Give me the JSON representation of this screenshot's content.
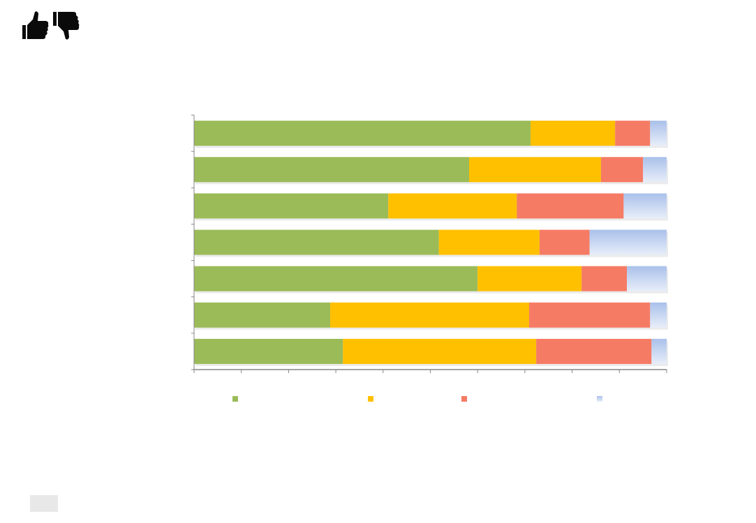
{
  "header": {
    "icons": [
      "thumbs-up-icon",
      "thumbs-down-icon"
    ]
  },
  "chart_data": {
    "type": "bar",
    "orientation": "horizontal",
    "stacked": true,
    "title": "",
    "xlabel": "",
    "ylabel": "",
    "xlim": [
      0,
      100
    ],
    "x_ticks": 10,
    "grid": false,
    "legend": "bottom",
    "categories": [
      "",
      "",
      "",
      "",
      "",
      "",
      ""
    ],
    "series": [
      {
        "color": "#9BBB59",
        "values": [
          71.2,
          58.2,
          41.1,
          51.8,
          60.0,
          28.8,
          31.5
        ]
      },
      {
        "color": "#FFC000",
        "values": [
          17.9,
          27.9,
          27.2,
          21.3,
          22.0,
          42.1,
          40.9
        ]
      },
      {
        "color": "#F67B65",
        "values": [
          7.4,
          8.9,
          22.6,
          10.6,
          9.6,
          25.6,
          24.4
        ]
      },
      {
        "color": "#A9C0EA",
        "values": [
          3.5,
          5.0,
          9.1,
          16.3,
          8.4,
          3.5,
          3.2
        ]
      }
    ]
  }
}
